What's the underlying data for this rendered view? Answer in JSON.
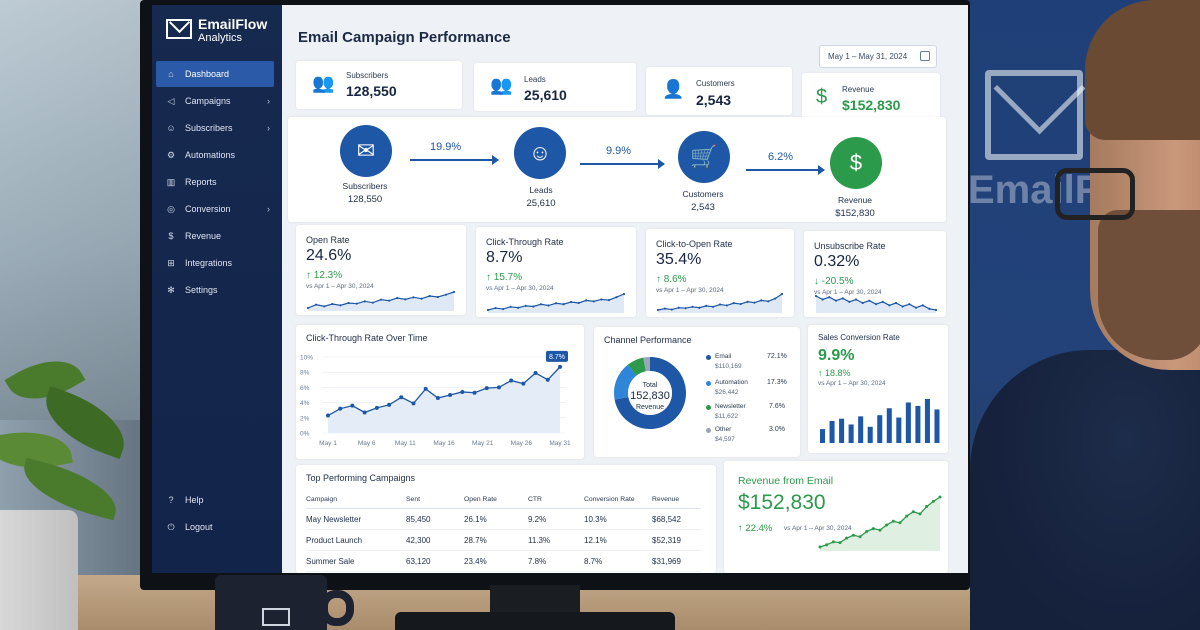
{
  "app": {
    "brand_name": "EmailFlow",
    "brand_sub": "Analytics",
    "page_title": "Email Campaign Performance",
    "date_range": "May 1 – May 31, 2024"
  },
  "sidebar": {
    "items": [
      {
        "label": "Dashboard",
        "icon": "home-icon",
        "active": true
      },
      {
        "label": "Campaigns",
        "icon": "megaphone-icon",
        "chevron": true
      },
      {
        "label": "Subscribers",
        "icon": "users-icon",
        "chevron": true
      },
      {
        "label": "Automations",
        "icon": "gear-icon"
      },
      {
        "label": "Reports",
        "icon": "bar-chart-icon"
      },
      {
        "label": "Conversion",
        "icon": "target-icon",
        "chevron": true
      },
      {
        "label": "Revenue",
        "icon": "dollar-icon"
      },
      {
        "label": "Integrations",
        "icon": "plug-icon"
      },
      {
        "label": "Settings",
        "icon": "settings-icon"
      }
    ],
    "bottom": [
      {
        "label": "Help",
        "icon": "help-icon"
      },
      {
        "label": "Logout",
        "icon": "logout-icon"
      }
    ]
  },
  "kpis": [
    {
      "label": "Subscribers",
      "value": "128,550",
      "icon": "users-icon"
    },
    {
      "label": "Leads",
      "value": "25,610",
      "icon": "users-icon"
    },
    {
      "label": "Customers",
      "value": "2,543",
      "icon": "user-icon"
    },
    {
      "label": "Revenue",
      "value": "$152,830",
      "icon": "dollar-icon"
    }
  ],
  "funnel": {
    "steps": [
      {
        "label": "Subscribers",
        "value": "128,550",
        "icon": "mail-icon"
      },
      {
        "label": "Leads",
        "value": "25,610",
        "icon": "user-icon"
      },
      {
        "label": "Customers",
        "value": "2,543",
        "icon": "cart-icon"
      },
      {
        "label": "Revenue",
        "value": "$152,830",
        "icon": "dollar-icon"
      }
    ],
    "rates": [
      "19.9%",
      "9.9%",
      "6.2%"
    ]
  },
  "metrics": [
    {
      "title": "Open Rate",
      "value": "24.6%",
      "change": "↑ 12.3%",
      "period": "vs Apr 1 – Apr 30, 2024",
      "spark": [
        2,
        3,
        2.5,
        3.2,
        2.8,
        3.5,
        3.3,
        4,
        3.6,
        4.5,
        4.2,
        5,
        4.6,
        5.2,
        4.8,
        5.6,
        5.3,
        6,
        6.8
      ]
    },
    {
      "title": "Click-Through Rate",
      "value": "8.7%",
      "change": "↑ 15.7%",
      "period": "vs Apr 1 – Apr 30, 2024",
      "spark": [
        2,
        2.6,
        2.3,
        3,
        2.7,
        3.3,
        3.1,
        3.8,
        3.4,
        4.1,
        3.8,
        4.5,
        4.2,
        5,
        4.7,
        5.3,
        5.1,
        6,
        7
      ]
    },
    {
      "title": "Click-to-Open Rate",
      "value": "35.4%",
      "change": "↑ 8.6%",
      "period": "vs Apr 1 – Apr 30, 2024",
      "spark": [
        2.5,
        2.8,
        2.6,
        3,
        2.9,
        3.2,
        3,
        3.4,
        3.2,
        3.7,
        3.5,
        4,
        3.8,
        4.3,
        4.1,
        4.6,
        4.4,
        5,
        6
      ]
    },
    {
      "title": "Unsubscribe Rate",
      "value": "0.32%",
      "change": "↓ -20.5%",
      "period": "vs Apr 1 – Apr 30, 2024",
      "spark": [
        4.4,
        4.1,
        4.3,
        4,
        4.2,
        3.9,
        4.1,
        3.8,
        4,
        3.7,
        3.9,
        3.6,
        3.8,
        3.5,
        3.7,
        3.4,
        3.6,
        3.3,
        3.2
      ]
    }
  ],
  "ctr_chart": {
    "title": "Click-Through Rate Over Time",
    "badge": "8.7%",
    "y_ticks": [
      "10%",
      "8%",
      "6%",
      "4%",
      "2%",
      "0%"
    ],
    "x_ticks": [
      "May 1",
      "May 6",
      "May 11",
      "May 16",
      "May 21",
      "May 26",
      "May 31"
    ]
  },
  "chart_data": [
    {
      "type": "line",
      "title": "Click-Through Rate Over Time",
      "x": [
        "May 1",
        "May 3",
        "May 4",
        "May 6",
        "May 8",
        "May 9",
        "May 11",
        "May 13",
        "May 14",
        "May 16",
        "May 17",
        "May 19",
        "May 20",
        "May 21",
        "May 23",
        "May 24",
        "May 26",
        "May 28",
        "May 29",
        "May 31"
      ],
      "values": [
        2.3,
        3.2,
        3.6,
        2.7,
        3.3,
        3.7,
        4.7,
        3.9,
        5.8,
        4.6,
        5.0,
        5.4,
        5.3,
        5.9,
        6.0,
        6.9,
        6.5,
        7.9,
        7.0,
        8.7
      ],
      "ylim": [
        0,
        10
      ]
    },
    {
      "type": "pie",
      "title": "Channel Performance",
      "categories": [
        "Email",
        "Automation",
        "Newsletter",
        "Other"
      ],
      "values": [
        72.1,
        17.3,
        7.6,
        3.0
      ]
    },
    {
      "type": "bar",
      "title": "Sales Conversion Rate",
      "values": [
        1.2,
        1.9,
        2.1,
        1.6,
        2.3,
        1.4,
        2.4,
        3.0,
        2.2,
        3.5,
        3.2,
        3.8,
        2.9
      ]
    },
    {
      "type": "line",
      "title": "Revenue from Email",
      "values": [
        1,
        1.3,
        1.7,
        1.6,
        2.2,
        2.6,
        2.4,
        3.1,
        3.5,
        3.3,
        4,
        4.5,
        4.3,
        5.2,
        5.8,
        5.5,
        6.5,
        7.2,
        7.8
      ]
    }
  ],
  "channel": {
    "title": "Channel Performance",
    "center_label": "Total",
    "center_value": "152,830",
    "center_sub": "Revenue",
    "items": [
      {
        "name": "Email",
        "value": "$110,169",
        "pct": "72.1%",
        "color": "#1d57a6"
      },
      {
        "name": "Automation",
        "value": "$26,442",
        "pct": "17.3%",
        "color": "#2f86d8"
      },
      {
        "name": "Newsletter",
        "value": "$11,622",
        "pct": "7.6%",
        "color": "#2b9a4b"
      },
      {
        "name": "Other",
        "value": "$4,597",
        "pct": "3.0%",
        "color": "#9aa6b6"
      }
    ]
  },
  "sales_conv": {
    "title": "Sales Conversion Rate",
    "value": "9.9%",
    "change": "↑ 18.8%",
    "period": "vs Apr 1 – Apr 30, 2024"
  },
  "campaigns": {
    "title": "Top Performing Campaigns",
    "columns": [
      "Campaign",
      "Sent",
      "Open Rate",
      "CTR",
      "Conversion Rate",
      "Revenue"
    ],
    "rows": [
      [
        "May Newsletter",
        "85,450",
        "26.1%",
        "9.2%",
        "10.3%",
        "$68,542"
      ],
      [
        "Product Launch",
        "42,300",
        "28.7%",
        "11.3%",
        "12.1%",
        "$52,319"
      ],
      [
        "Summer Sale",
        "63,120",
        "23.4%",
        "7.8%",
        "8.7%",
        "$31,969"
      ]
    ]
  },
  "revenue_email": {
    "title": "Revenue from Email",
    "value": "$152,830",
    "change": "↑ 22.4%",
    "period": "vs Apr 1 – Apr 30, 2024"
  },
  "colors": {
    "primary": "#1d57a6",
    "sidebar": "#16294f",
    "green": "#2b9a4b"
  }
}
